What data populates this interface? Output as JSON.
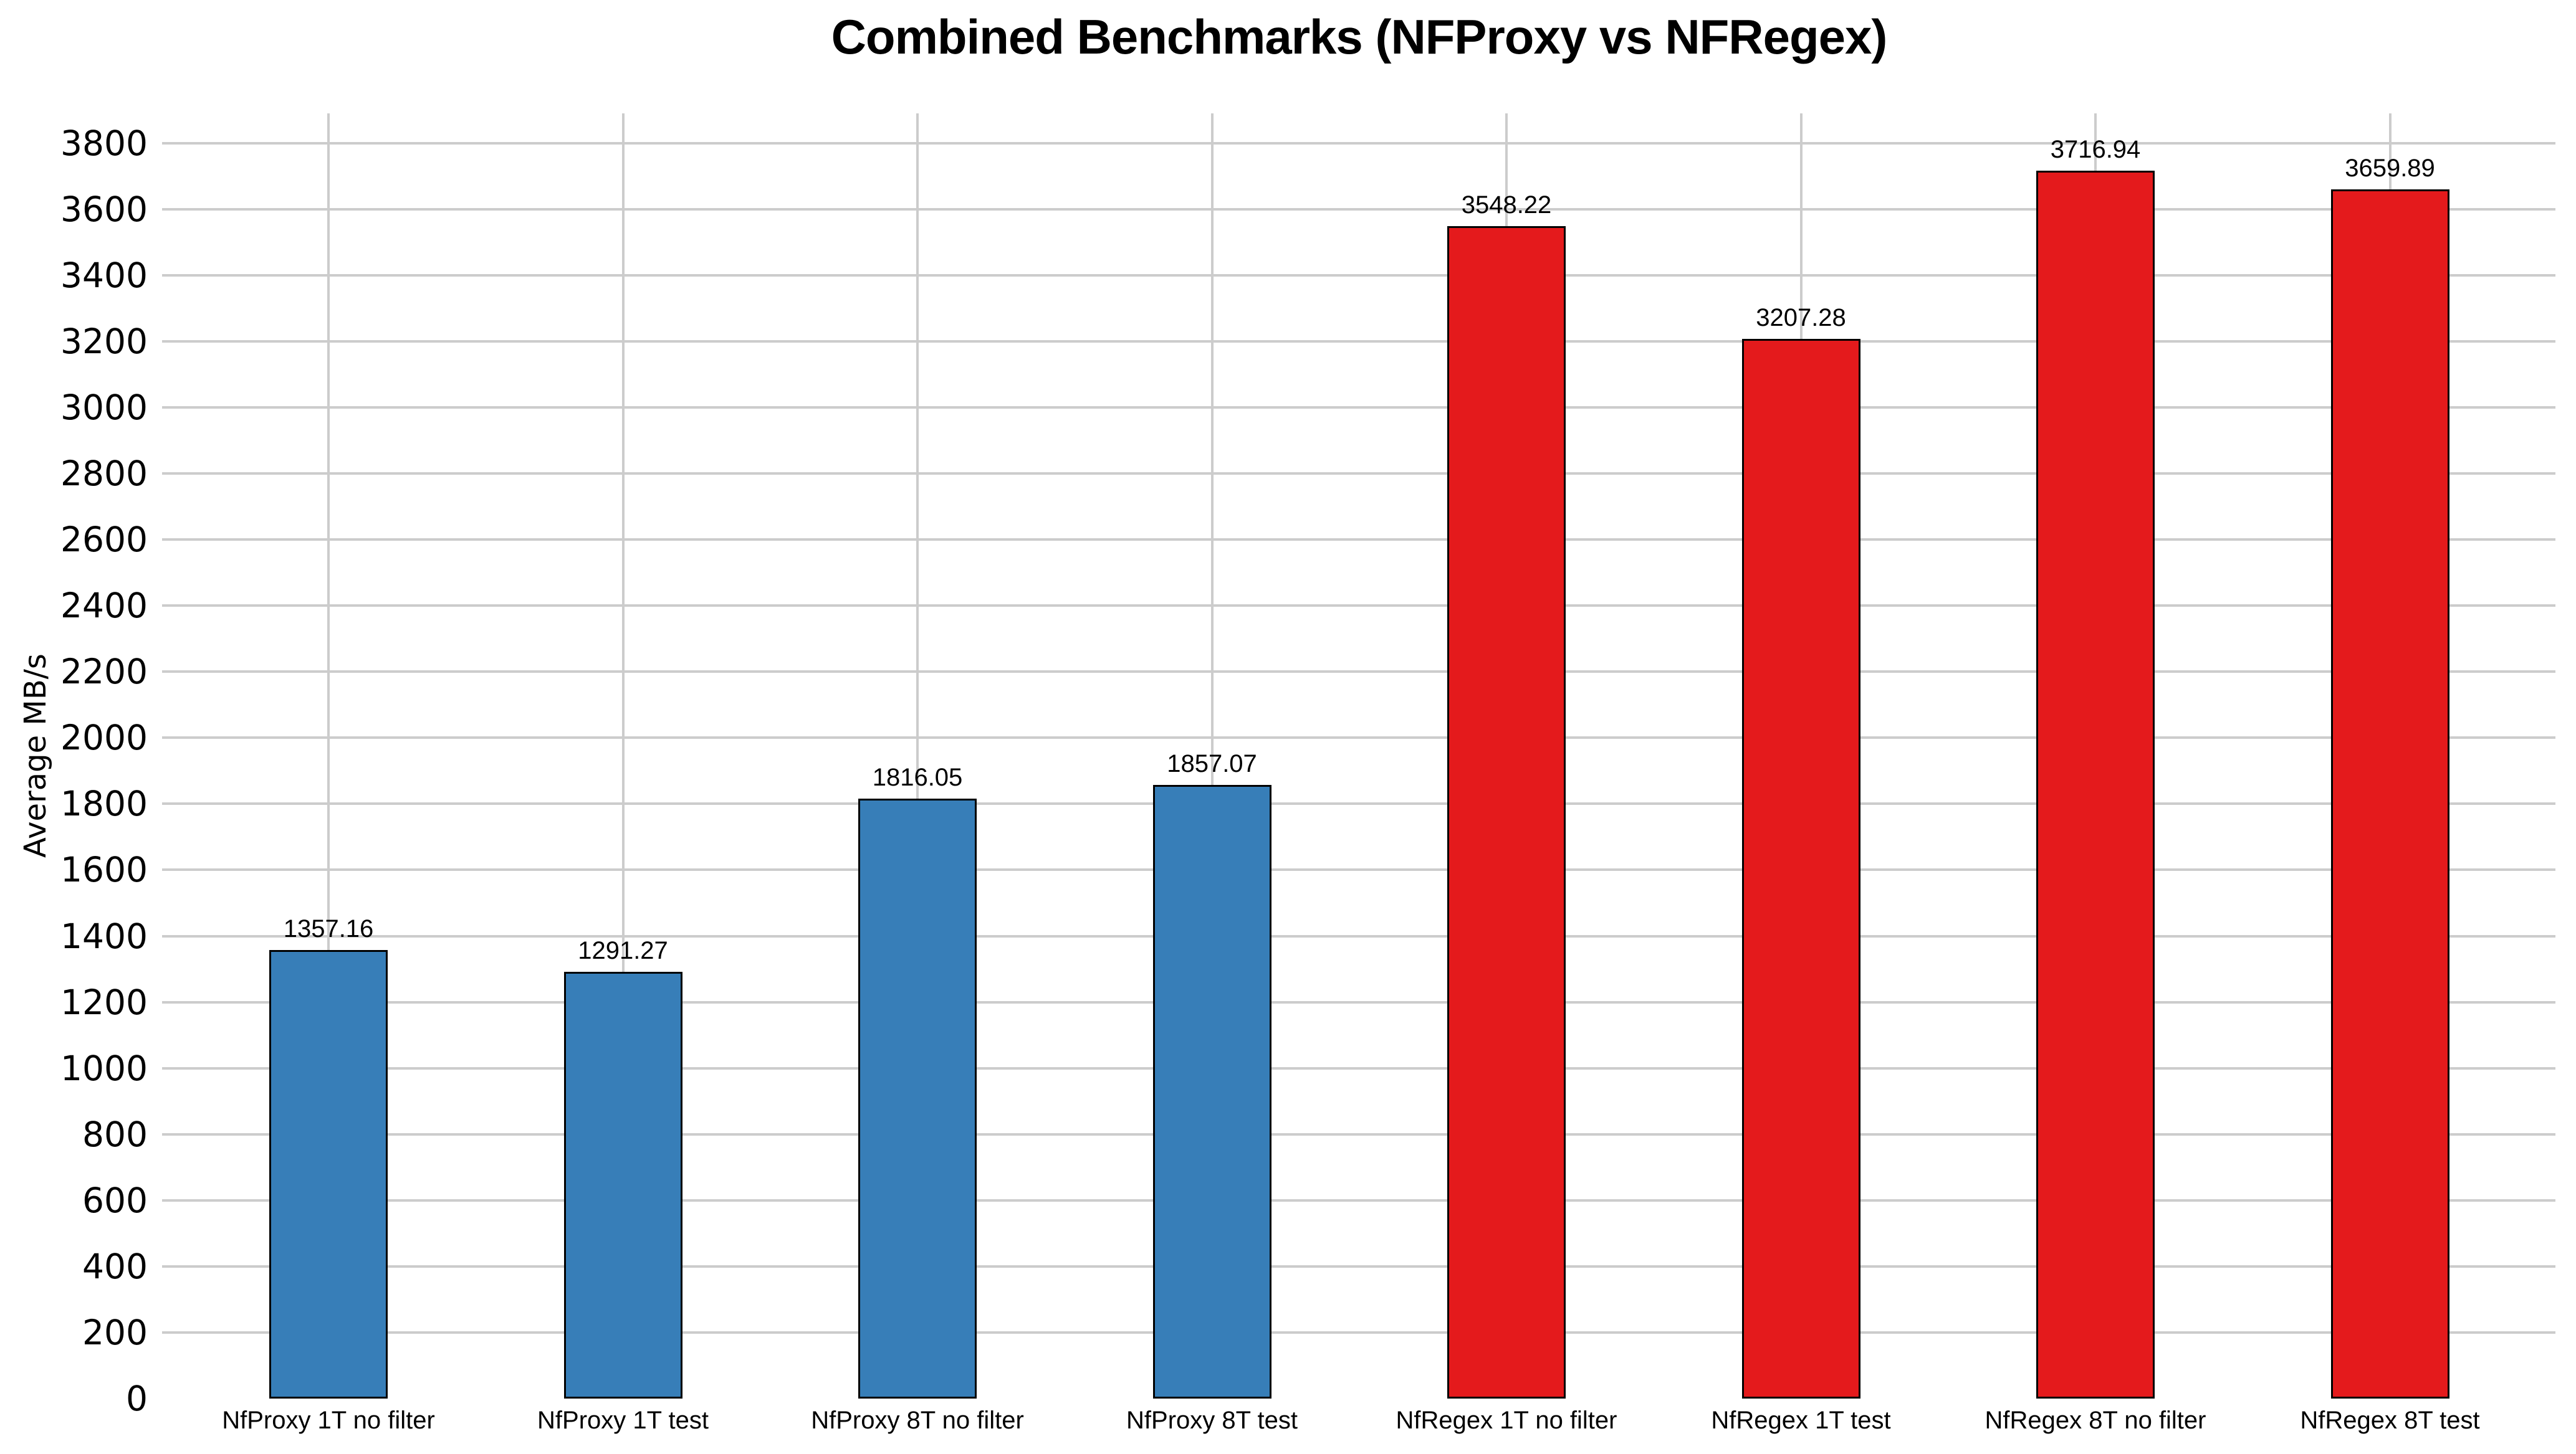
{
  "chart_data": {
    "type": "bar",
    "title": "Combined Benchmarks (NFProxy vs NFRegex)",
    "xlabel": "",
    "ylabel": "Average MB/s",
    "categories": [
      "NfProxy 1T no filter",
      "NfProxy 1T test",
      "NfProxy 8T no filter",
      "NfProxy 8T test",
      "NfRegex 1T no filter",
      "NfRegex 1T test",
      "NfRegex 8T no filter",
      "NfRegex 8T test"
    ],
    "values": [
      1357.16,
      1291.27,
      1816.05,
      1857.07,
      3548.22,
      3207.28,
      3716.94,
      3659.89
    ],
    "value_labels": [
      "1357.16",
      "1291.27",
      "1816.05",
      "1857.07",
      "3548.22",
      "3207.28",
      "3716.94",
      "3659.89"
    ],
    "bar_groups": [
      "NFProxy",
      "NFProxy",
      "NFProxy",
      "NFProxy",
      "NFRegex",
      "NFRegex",
      "NFRegex",
      "NFRegex"
    ],
    "group_colors": {
      "NFProxy": "#377eb8",
      "NFRegex": "#e41a1c"
    },
    "bar_edge_color": "#000000",
    "grid_color": "#cccccc",
    "axis_text_color": "#000000",
    "background_color": "#ffffff",
    "ylim": [
      0,
      3890
    ],
    "yticks": [
      0,
      200,
      400,
      600,
      800,
      1000,
      1200,
      1400,
      1600,
      1800,
      2000,
      2200,
      2400,
      2600,
      2800,
      3000,
      3200,
      3400,
      3600,
      3800
    ],
    "grid": "both",
    "legend_position": "none",
    "value_labels_shown": true
  }
}
